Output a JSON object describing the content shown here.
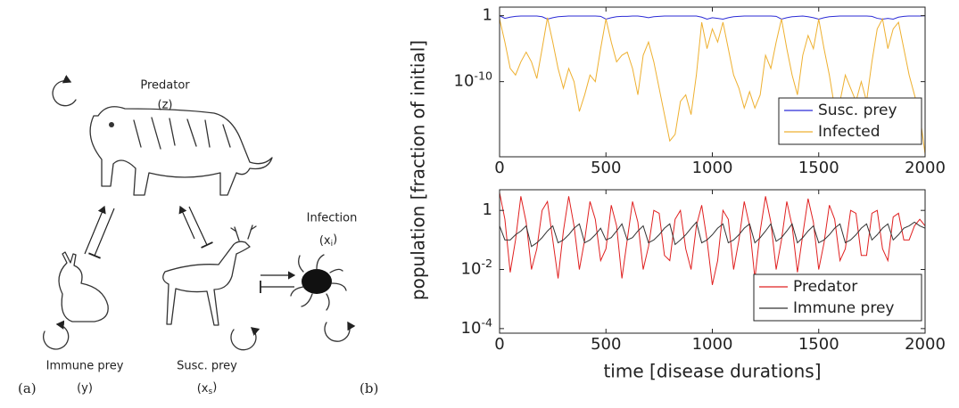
{
  "diagram": {
    "panel_a": "(a)",
    "panel_b": "(b)",
    "nodes": [
      {
        "name": "Predator",
        "symbol": "(z)"
      },
      {
        "name": "Immune prey",
        "symbol": "(y)"
      },
      {
        "name": "Susc. prey",
        "symbol": "(x_s)"
      },
      {
        "name": "Infection",
        "symbol": "(x_i)"
      }
    ]
  },
  "chart_data": [
    {
      "type": "line",
      "log_y": true,
      "ylabel": "population [fraction of initial]",
      "x": [
        0,
        25,
        50,
        75,
        100,
        125,
        150,
        175,
        200,
        225,
        250,
        275,
        300,
        325,
        350,
        375,
        400,
        425,
        450,
        475,
        500,
        525,
        550,
        575,
        600,
        625,
        650,
        675,
        700,
        725,
        750,
        775,
        800,
        825,
        850,
        875,
        900,
        925,
        950,
        975,
        1000,
        1025,
        1050,
        1075,
        1100,
        1125,
        1150,
        1175,
        1200,
        1225,
        1250,
        1275,
        1300,
        1325,
        1350,
        1375,
        1400,
        1425,
        1450,
        1475,
        1500,
        1525,
        1550,
        1575,
        1600,
        1625,
        1650,
        1675,
        1700,
        1725,
        1750,
        1775,
        1800,
        1825,
        1850,
        1875,
        1900,
        1925,
        1950,
        1975,
        2000
      ],
      "xlim": [
        0,
        2000
      ],
      "xticks": [
        0,
        500,
        1000,
        1500,
        2000
      ],
      "ylim": [
        4e-22,
        20
      ],
      "yticks": [
        1,
        {
          "value": 1e-10,
          "label": "10^-10"
        }
      ],
      "legend": "lower right",
      "series": [
        {
          "name": "Susc. prey",
          "color": "#2b2bd6",
          "values": [
            1,
            0.4,
            0.6,
            0.8,
            0.9,
            0.9,
            0.9,
            0.9,
            0.7,
            0.3,
            0.5,
            0.7,
            0.8,
            0.9,
            0.9,
            0.9,
            0.9,
            0.9,
            0.9,
            0.8,
            0.3,
            0.5,
            0.7,
            0.8,
            0.8,
            0.9,
            0.9,
            0.7,
            0.5,
            0.7,
            0.8,
            0.9,
            0.9,
            0.9,
            0.9,
            0.9,
            0.9,
            0.9,
            0.6,
            0.3,
            0.5,
            0.4,
            0.3,
            0.5,
            0.7,
            0.8,
            0.9,
            0.9,
            0.9,
            0.9,
            0.9,
            0.9,
            0.8,
            0.3,
            0.5,
            0.7,
            0.8,
            0.9,
            0.7,
            0.5,
            0.3,
            0.5,
            0.7,
            0.8,
            0.9,
            0.9,
            0.9,
            0.9,
            0.9,
            0.9,
            0.8,
            0.4,
            0.3,
            0.4,
            0.3,
            0.6,
            0.8,
            0.9,
            0.9,
            0.9,
            1
          ]
        },
        {
          "name": "Infected",
          "color": "#eeb030",
          "values": [
            0.32,
            0.0001,
            1e-08,
            1e-09,
            1e-07,
            3e-06,
            1e-07,
            3e-10,
            1e-05,
            0.5,
            0.0001,
            1e-08,
            1e-11,
            1e-08,
            1e-10,
            3e-15,
            1e-12,
            1e-09,
            1e-10,
            1e-05,
            0.32,
            0.0001,
            1e-07,
            1e-06,
            3e-06,
            1e-08,
            1e-12,
            1e-06,
            0.0001,
            1e-07,
            1e-11,
            1e-15,
            1e-19,
            1e-18,
            1e-13,
            1e-12,
            1e-15,
            1e-09,
            0.1,
            1e-05,
            0.01,
            0.0001,
            0.1,
            1e-05,
            1e-09,
            1e-11,
            1e-14,
            3e-12,
            1e-14,
            1e-12,
            1e-06,
            1e-08,
            0.0001,
            0.32,
            1e-05,
            1e-09,
            1e-12,
            1e-06,
            0.001,
            1e-05,
            0.32,
            1e-05,
            1e-09,
            1e-14,
            1e-13,
            1e-09,
            1e-11,
            1e-13,
            1e-10,
            1e-13,
            1e-07,
            0.01,
            0.32,
            1e-05,
            0.01,
            0.1,
            1e-05,
            1e-09,
            1e-12,
            1e-15,
            1e-21
          ]
        }
      ]
    },
    {
      "type": "line",
      "log_y": true,
      "xlabel": "time [disease durations]",
      "x": [
        0,
        25,
        50,
        75,
        100,
        125,
        150,
        175,
        200,
        225,
        250,
        275,
        300,
        325,
        350,
        375,
        400,
        425,
        450,
        475,
        500,
        525,
        550,
        575,
        600,
        625,
        650,
        675,
        700,
        725,
        750,
        775,
        800,
        825,
        850,
        875,
        900,
        925,
        950,
        975,
        1000,
        1025,
        1050,
        1075,
        1100,
        1125,
        1150,
        1175,
        1200,
        1225,
        1250,
        1275,
        1300,
        1325,
        1350,
        1375,
        1400,
        1425,
        1450,
        1475,
        1500,
        1525,
        1550,
        1575,
        1600,
        1625,
        1650,
        1675,
        1700,
        1725,
        1750,
        1775,
        1800,
        1825,
        1850,
        1875,
        1900,
        1925,
        1950,
        1975,
        2000
      ],
      "xlim": [
        0,
        2000
      ],
      "xticks": [
        0,
        500,
        1000,
        1500,
        2000
      ],
      "ylim": [
        7e-05,
        5
      ],
      "yticks": [
        1,
        {
          "value": 0.01,
          "label": "10^-2"
        },
        {
          "value": 0.0001,
          "label": "10^-4"
        }
      ],
      "legend": "lower right",
      "series": [
        {
          "name": "Predator",
          "color": "#e02020",
          "values": [
            4,
            0.5,
            0.008,
            0.1,
            3,
            0.4,
            0.01,
            0.05,
            1,
            2,
            0.1,
            0.005,
            0.2,
            3,
            0.3,
            0.01,
            0.1,
            2,
            0.5,
            0.02,
            0.05,
            1.5,
            0.3,
            0.005,
            0.1,
            2,
            0.4,
            0.01,
            0.06,
            1,
            0.8,
            0.03,
            0.02,
            0.5,
            1,
            0.05,
            0.01,
            0.3,
            1.5,
            0.1,
            0.003,
            0.02,
            1,
            0.5,
            0.01,
            0.1,
            2,
            0.3,
            0.005,
            0.2,
            3,
            0.4,
            0.01,
            0.1,
            2,
            0.3,
            0.008,
            0.15,
            2.5,
            0.4,
            0.01,
            0.08,
            1.5,
            0.5,
            0.02,
            0.05,
            1,
            0.8,
            0.03,
            0.03,
            0.8,
            1,
            0.05,
            0.02,
            0.6,
            0.8,
            0.1,
            0.1,
            0.3,
            0.5,
            0.3
          ]
        },
        {
          "name": "Immune prey",
          "color": "#333333",
          "values": [
            0.3,
            0.1,
            0.1,
            0.15,
            0.2,
            0.3,
            0.06,
            0.08,
            0.12,
            0.2,
            0.3,
            0.08,
            0.1,
            0.15,
            0.25,
            0.35,
            0.08,
            0.1,
            0.15,
            0.25,
            0.1,
            0.12,
            0.2,
            0.35,
            0.1,
            0.12,
            0.2,
            0.3,
            0.08,
            0.1,
            0.15,
            0.25,
            0.35,
            0.07,
            0.1,
            0.15,
            0.25,
            0.4,
            0.08,
            0.1,
            0.15,
            0.25,
            0.35,
            0.08,
            0.1,
            0.15,
            0.25,
            0.35,
            0.08,
            0.12,
            0.2,
            0.35,
            0.09,
            0.12,
            0.2,
            0.35,
            0.08,
            0.12,
            0.2,
            0.3,
            0.08,
            0.1,
            0.15,
            0.25,
            0.35,
            0.08,
            0.1,
            0.15,
            0.25,
            0.35,
            0.1,
            0.15,
            0.25,
            0.35,
            0.1,
            0.15,
            0.25,
            0.3,
            0.4,
            0.3,
            0.25
          ]
        }
      ]
    }
  ]
}
